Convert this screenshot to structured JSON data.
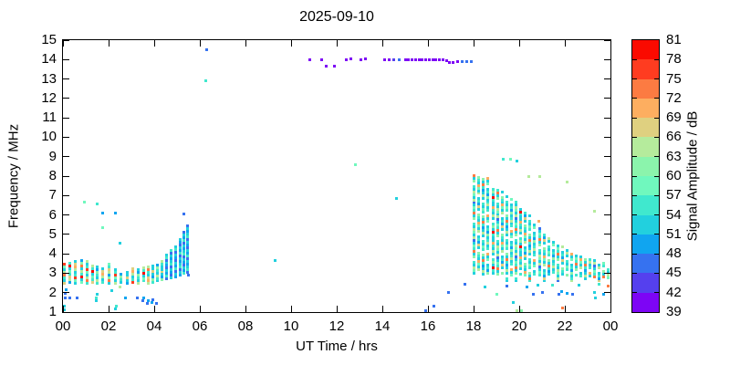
{
  "title": "2025-09-10",
  "chart_data": {
    "type": "scatter",
    "title": "2025-09-10",
    "xlabel": "UT Time / hrs",
    "ylabel": "Frequency / MHz",
    "xlim": [
      0,
      24
    ],
    "ylim": [
      1,
      15
    ],
    "grid": false,
    "x_ticks": {
      "values": [
        0,
        2,
        4,
        6,
        8,
        10,
        12,
        14,
        16,
        18,
        20,
        22,
        24
      ],
      "labels": [
        "00",
        "02",
        "04",
        "06",
        "08",
        "10",
        "12",
        "14",
        "16",
        "18",
        "20",
        "22",
        "00"
      ]
    },
    "y_ticks": {
      "values": [
        1,
        2,
        3,
        4,
        5,
        6,
        7,
        8,
        9,
        10,
        11,
        12,
        13,
        14,
        15
      ],
      "labels": [
        "1",
        "2",
        "3",
        "4",
        "5",
        "6",
        "7",
        "8",
        "9",
        "10",
        "11",
        "12",
        "13",
        "14",
        "15"
      ]
    },
    "colorbar": {
      "label": "Signal Amplitude / dB",
      "min": 39,
      "max": 81,
      "tick_step": 3,
      "tick_labels": [
        "39",
        "42",
        "45",
        "48",
        "51",
        "54",
        "57",
        "60",
        "63",
        "66",
        "69",
        "72",
        "75",
        "78",
        "81"
      ],
      "colors": [
        "#7d05f5",
        "#5540ee",
        "#3672f0",
        "#10a5f0",
        "#22d0de",
        "#40e8ce",
        "#70f8be",
        "#8bf4ac",
        "#b5eb9c",
        "#dfd080",
        "#fdae60",
        "#fc7b42",
        "#ff3c20",
        "#fa0a00"
      ]
    },
    "f_step": 0.14,
    "palettes": {
      "LW1": [
        67.5,
        52.5,
        55.5,
        73.5,
        64.5,
        52.5,
        58.5,
        76.5,
        55.5,
        52.5,
        64.5,
        70.5
      ],
      "LW2": [
        52.5,
        73.5,
        61.5,
        49.5,
        64.5,
        67.5,
        55.5,
        58.5,
        52.5,
        79.5,
        55.5,
        64.5
      ],
      "LC": [
        52.5,
        55.5,
        64.5,
        52.5,
        55.5,
        61.5,
        49.5,
        52.5,
        67.5,
        52.5
      ],
      "BR": [
        49.5,
        52.5,
        46,
        55.5,
        49.5,
        52.5,
        46,
        49.5,
        52.5,
        46,
        55.5,
        52.5
      ],
      "T1": [
        52.5,
        58.5,
        64.5,
        52.5,
        55.5,
        0,
        61.5,
        52.5,
        73.5,
        55.5,
        58.5,
        52.5,
        46,
        64.5
      ],
      "T2": [
        55.5,
        52.5,
        0,
        64.5,
        52.5,
        58.5,
        70.5,
        52.5,
        55.5,
        61.5,
        0,
        52.5,
        67.5,
        49.5
      ],
      "T3": [
        58.5,
        52.5,
        55.5,
        0,
        52.5,
        64.5,
        52.5,
        49.5,
        55.5,
        73.5,
        52.5,
        61.5,
        0,
        55.5
      ],
      "T4": [
        52.5,
        61.5,
        49.5,
        55.5,
        52.5,
        0,
        58.5,
        52.5,
        70.5,
        0,
        55.5,
        52.5,
        64.5,
        55.5
      ],
      "TR": [
        52.5,
        55.5,
        79.5,
        52.5,
        61.5,
        55.5,
        0,
        52.5,
        64.5,
        52.5,
        55.5,
        70.5,
        52.5
      ]
    },
    "columns": [
      [
        0.05,
        2.5,
        3.5,
        "LW1",
        0
      ],
      [
        0.3,
        2.55,
        3.55,
        "LW2",
        3
      ],
      [
        0.55,
        2.5,
        3.65,
        "LW1",
        5
      ],
      [
        0.8,
        2.55,
        3.7,
        "LW2",
        7
      ],
      [
        1.05,
        2.5,
        3.7,
        "LW1",
        2
      ],
      [
        1.3,
        2.55,
        3.5,
        "LW2",
        5
      ],
      [
        1.5,
        2.5,
        3.35,
        "LC",
        1
      ],
      [
        1.75,
        2.55,
        3.25,
        "LW1",
        8
      ],
      [
        2.0,
        2.5,
        3.5,
        "LW2",
        0
      ],
      [
        2.3,
        2.5,
        3.2,
        "LW1",
        4
      ],
      [
        2.55,
        2.55,
        3.1,
        "LC",
        3
      ],
      [
        2.8,
        2.5,
        3.15,
        "LC",
        6
      ],
      [
        3.05,
        2.55,
        3.35,
        "LW1",
        7
      ],
      [
        3.3,
        2.5,
        3.3,
        "LC",
        2
      ],
      [
        3.55,
        2.6,
        3.4,
        "LW2",
        6
      ],
      [
        3.75,
        2.5,
        3.45,
        "LW1",
        10
      ],
      [
        3.95,
        2.55,
        3.4,
        "LC",
        4
      ],
      [
        4.15,
        2.6,
        3.45,
        "LC",
        0
      ],
      [
        4.35,
        2.65,
        3.7,
        "LC",
        5
      ],
      [
        4.55,
        2.7,
        4.0,
        "BR",
        2
      ],
      [
        4.75,
        2.75,
        4.15,
        "BR",
        5
      ],
      [
        4.95,
        2.8,
        4.45,
        "BR",
        0
      ],
      [
        5.15,
        2.9,
        4.75,
        "BR",
        7
      ],
      [
        5.3,
        3.0,
        5.2,
        "BR",
        3
      ],
      [
        5.45,
        3.05,
        5.55,
        "BR",
        9
      ],
      [
        18.0,
        3.0,
        8.15,
        "T1",
        0
      ],
      [
        18.2,
        3.05,
        8.1,
        "T2",
        2
      ],
      [
        18.4,
        2.95,
        8.05,
        "T3",
        4
      ],
      [
        18.6,
        3.0,
        7.9,
        "T4",
        1
      ],
      [
        18.85,
        3.0,
        7.6,
        "TR",
        0
      ],
      [
        19.05,
        2.95,
        7.4,
        "T1",
        6
      ],
      [
        19.25,
        3.0,
        7.2,
        "T2",
        9
      ],
      [
        19.45,
        2.6,
        7.0,
        "T3",
        1
      ],
      [
        19.65,
        2.9,
        6.9,
        "T4",
        6
      ],
      [
        19.85,
        2.6,
        6.7,
        "T1",
        3
      ],
      [
        20.05,
        2.95,
        6.4,
        "TR",
        5
      ],
      [
        20.25,
        2.9,
        6.2,
        "T2",
        5
      ],
      [
        20.45,
        2.6,
        6.0,
        "T3",
        8
      ],
      [
        20.65,
        2.95,
        5.6,
        "T4",
        3
      ],
      [
        20.9,
        2.9,
        5.3,
        "T1",
        9
      ],
      [
        21.1,
        2.6,
        5.1,
        "T2",
        11
      ],
      [
        21.3,
        2.95,
        4.9,
        "T3",
        6
      ],
      [
        21.5,
        2.9,
        4.7,
        "T4",
        9
      ],
      [
        21.7,
        2.6,
        4.55,
        "T1",
        12
      ],
      [
        21.9,
        2.95,
        4.4,
        "T2",
        7
      ],
      [
        22.1,
        2.9,
        4.25,
        "T3",
        11
      ],
      [
        22.3,
        2.6,
        4.1,
        "T4",
        12
      ],
      [
        22.5,
        2.9,
        4.0,
        "T1",
        4
      ],
      [
        22.7,
        2.85,
        3.9,
        "T2",
        0
      ],
      [
        22.9,
        2.6,
        3.8,
        "T3",
        3
      ],
      [
        23.1,
        2.85,
        3.7,
        "T4",
        7
      ],
      [
        23.3,
        2.8,
        3.65,
        "T1",
        8
      ],
      [
        23.5,
        2.6,
        3.55,
        "T2",
        12
      ],
      [
        23.7,
        2.8,
        3.5,
        "T3",
        9
      ],
      [
        23.9,
        2.75,
        3.4,
        "T1",
        1
      ]
    ],
    "points": [
      [
        6.3,
        14.5,
        46
      ],
      [
        6.25,
        12.9,
        55.5
      ],
      [
        10.8,
        14,
        40
      ],
      [
        11.35,
        14,
        40
      ],
      [
        11.55,
        13.65,
        40
      ],
      [
        11.9,
        13.65,
        40
      ],
      [
        12.4,
        14,
        40
      ],
      [
        12.6,
        14.05,
        40
      ],
      [
        13.05,
        14,
        40
      ],
      [
        13.25,
        14.05,
        40
      ],
      [
        14.1,
        14,
        40
      ],
      [
        14.3,
        14,
        40
      ],
      [
        14.5,
        14,
        43
      ],
      [
        14.75,
        14,
        46
      ],
      [
        15.0,
        14,
        40
      ],
      [
        15.15,
        14,
        40
      ],
      [
        15.3,
        14,
        40
      ],
      [
        15.45,
        14,
        40
      ],
      [
        15.6,
        14,
        40
      ],
      [
        15.75,
        14,
        40
      ],
      [
        15.9,
        14,
        40
      ],
      [
        16.05,
        14,
        40
      ],
      [
        16.2,
        14,
        40
      ],
      [
        16.35,
        14,
        40
      ],
      [
        16.5,
        14,
        40
      ],
      [
        16.65,
        14,
        40
      ],
      [
        16.8,
        13.95,
        40
      ],
      [
        16.95,
        13.85,
        40
      ],
      [
        17.1,
        13.85,
        40
      ],
      [
        17.3,
        13.9,
        40
      ],
      [
        17.5,
        13.9,
        46
      ],
      [
        17.7,
        13.9,
        46
      ],
      [
        17.9,
        13.9,
        46
      ],
      [
        9.3,
        3.65,
        52.5
      ],
      [
        12.8,
        8.6,
        58.5
      ],
      [
        14.6,
        6.85,
        52.5
      ],
      [
        0.95,
        6.65,
        58.5
      ],
      [
        1.5,
        6.55,
        55.5
      ],
      [
        1.75,
        6.1,
        49.5
      ],
      [
        2.3,
        6.1,
        49.5
      ],
      [
        1.75,
        5.35,
        58.5
      ],
      [
        2.5,
        4.55,
        52.5
      ],
      [
        5.3,
        6.05,
        46
      ],
      [
        5.5,
        2.9,
        46
      ],
      [
        0.05,
        1.1,
        52.5
      ],
      [
        0.05,
        1.3,
        52.5
      ],
      [
        0.08,
        1.75,
        46
      ],
      [
        0.1,
        1.95,
        46
      ],
      [
        0.12,
        2.15,
        49.5
      ],
      [
        0.3,
        1.75,
        46
      ],
      [
        0.6,
        1.75,
        46
      ],
      [
        1.45,
        1.6,
        52.5
      ],
      [
        1.45,
        1.75,
        55.5
      ],
      [
        1.48,
        1.9,
        52.5
      ],
      [
        2.15,
        2.1,
        52.5
      ],
      [
        2.3,
        1.15,
        52.5
      ],
      [
        2.32,
        1.3,
        55.5
      ],
      [
        2.5,
        2.3,
        64.5
      ],
      [
        2.75,
        1.75,
        49.5
      ],
      [
        3.25,
        1.75,
        46
      ],
      [
        3.5,
        1.6,
        46
      ],
      [
        3.55,
        1.75,
        49.5
      ],
      [
        3.7,
        1.45,
        46
      ],
      [
        3.72,
        1.6,
        49.5
      ],
      [
        3.9,
        1.5,
        49.5
      ],
      [
        3.92,
        1.65,
        46
      ],
      [
        4.1,
        1.45,
        46
      ],
      [
        15.9,
        1.05,
        46
      ],
      [
        16.25,
        1.3,
        46
      ],
      [
        16.9,
        2.0,
        46
      ],
      [
        17.6,
        2.45,
        46
      ],
      [
        18.5,
        2.3,
        52.5
      ],
      [
        19.0,
        1.9,
        58.5
      ],
      [
        19.45,
        2.35,
        46
      ],
      [
        19.75,
        1.5,
        52.5
      ],
      [
        19.9,
        1.05,
        64.5
      ],
      [
        20.1,
        1.05,
        61.5
      ],
      [
        20.35,
        2.3,
        49.5
      ],
      [
        20.6,
        1.9,
        46
      ],
      [
        20.8,
        2.4,
        52.5
      ],
      [
        21.0,
        2.0,
        46
      ],
      [
        21.45,
        2.4,
        55.5
      ],
      [
        21.75,
        1.9,
        46
      ],
      [
        21.85,
        2.05,
        49.5
      ],
      [
        21.9,
        1.2,
        73.5
      ],
      [
        22.1,
        1.95,
        49.5
      ],
      [
        22.35,
        1.9,
        46
      ],
      [
        22.6,
        2.4,
        52.5
      ],
      [
        23.3,
        2.0,
        52.5
      ],
      [
        23.35,
        1.75,
        52.5
      ],
      [
        23.5,
        2.45,
        55.5
      ],
      [
        23.7,
        1.9,
        49.5
      ],
      [
        23.9,
        2.35,
        73.5
      ],
      [
        19.3,
        8.85,
        55.5
      ],
      [
        19.6,
        8.85,
        58.5
      ],
      [
        19.9,
        8.8,
        52.5
      ],
      [
        20.4,
        8.0,
        64.5
      ],
      [
        20.9,
        8.0,
        64.5
      ],
      [
        22.1,
        7.7,
        64.5
      ],
      [
        23.3,
        6.2,
        64.5
      ],
      [
        20.85,
        5.7,
        70.5
      ]
    ]
  }
}
